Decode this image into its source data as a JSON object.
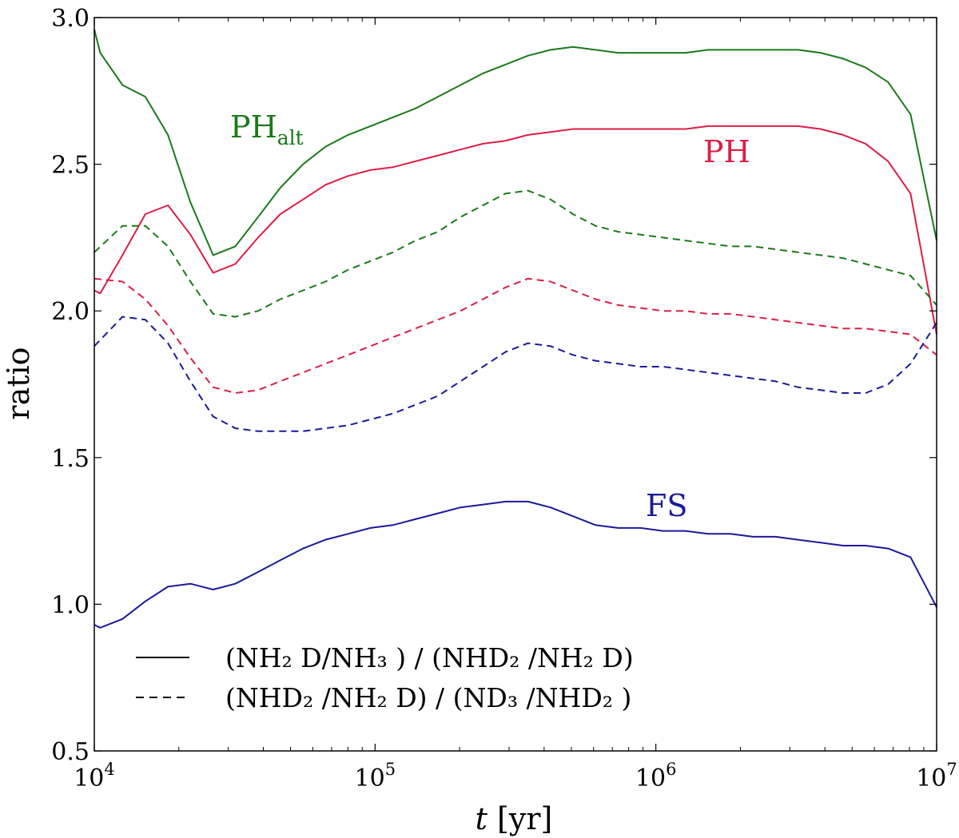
{
  "chart_data": {
    "type": "line",
    "title": "",
    "xlabel": {
      "italic": "t",
      "rest": " [yr]"
    },
    "ylabel": "ratio",
    "xscale": "log",
    "xlim": [
      10000,
      10000000
    ],
    "ylim": [
      0.5,
      3.0
    ],
    "grid": false,
    "x_ticks": [
      {
        "value": 10000,
        "base": "10",
        "exp": "4"
      },
      {
        "value": 100000,
        "base": "10",
        "exp": "5"
      },
      {
        "value": 1000000,
        "base": "10",
        "exp": "6"
      },
      {
        "value": 10000000,
        "base": "10",
        "exp": "7"
      }
    ],
    "y_ticks": [
      {
        "value": 0.5,
        "label": "0.5"
      },
      {
        "value": 1.0,
        "label": "1.0"
      },
      {
        "value": 1.5,
        "label": "1.5"
      },
      {
        "value": 2.0,
        "label": "2.0"
      },
      {
        "value": 2.5,
        "label": "2.5"
      },
      {
        "value": 3.0,
        "label": "3.0"
      }
    ],
    "colors": {
      "PH_alt": "#1a7a1a",
      "PH": "#dc1e46",
      "FS": "#1a1a9c",
      "axis": "#000000"
    },
    "series": [
      {
        "name": "PH_alt-solid",
        "model": "PH_alt",
        "style": "solid",
        "color": "#1a7a1a",
        "x": [
          10000,
          10500,
          12600,
          15200,
          18300,
          22000,
          26500,
          31800,
          38300,
          46000,
          55400,
          66600,
          80100,
          96300,
          115800,
          139300,
          167500,
          201500,
          242300,
          291400,
          350500,
          421600,
          507000,
          609800,
          733400,
          882000,
          1060800,
          1275900,
          1534500,
          1845500,
          2219600,
          2669500,
          3210600,
          3861300,
          4644000,
          5585200,
          6717200,
          8078600,
          10000000
        ],
        "values": [
          2.96,
          2.88,
          2.77,
          2.73,
          2.6,
          2.37,
          2.19,
          2.22,
          2.32,
          2.42,
          2.5,
          2.56,
          2.6,
          2.63,
          2.66,
          2.69,
          2.73,
          2.77,
          2.81,
          2.84,
          2.87,
          2.89,
          2.9,
          2.89,
          2.88,
          2.88,
          2.88,
          2.88,
          2.89,
          2.89,
          2.89,
          2.89,
          2.89,
          2.88,
          2.86,
          2.83,
          2.78,
          2.67,
          2.24
        ]
      },
      {
        "name": "PH-solid",
        "model": "PH",
        "style": "solid",
        "color": "#dc1e46",
        "x": [
          10000,
          10500,
          12600,
          15200,
          18300,
          22000,
          26500,
          31800,
          38300,
          46000,
          55400,
          66600,
          80100,
          96300,
          115800,
          139300,
          167500,
          201500,
          242300,
          291400,
          350500,
          421600,
          507000,
          609800,
          733400,
          882000,
          1060800,
          1275900,
          1534500,
          1845500,
          2219600,
          2669500,
          3210600,
          3861300,
          4644000,
          5585200,
          6717200,
          8078600,
          10000000
        ],
        "values": [
          2.07,
          2.06,
          2.19,
          2.33,
          2.36,
          2.26,
          2.13,
          2.16,
          2.25,
          2.33,
          2.38,
          2.43,
          2.46,
          2.48,
          2.49,
          2.51,
          2.53,
          2.55,
          2.57,
          2.58,
          2.6,
          2.61,
          2.62,
          2.62,
          2.62,
          2.62,
          2.62,
          2.62,
          2.63,
          2.63,
          2.63,
          2.63,
          2.63,
          2.62,
          2.6,
          2.57,
          2.51,
          2.4,
          1.92
        ]
      },
      {
        "name": "FS-solid",
        "model": "FS",
        "style": "solid",
        "color": "#1a1a9c",
        "x": [
          10000,
          10500,
          12600,
          15200,
          18300,
          22000,
          26500,
          31800,
          38300,
          46000,
          55400,
          66600,
          80100,
          96300,
          115800,
          139300,
          167500,
          201500,
          242300,
          291400,
          350500,
          421600,
          507000,
          609800,
          733400,
          882000,
          1060800,
          1275900,
          1534500,
          1845500,
          2219600,
          2669500,
          3210600,
          3861300,
          4644000,
          5585200,
          6717200,
          8078600,
          10000000
        ],
        "values": [
          0.93,
          0.92,
          0.95,
          1.01,
          1.06,
          1.07,
          1.05,
          1.07,
          1.11,
          1.15,
          1.19,
          1.22,
          1.24,
          1.26,
          1.27,
          1.29,
          1.31,
          1.33,
          1.34,
          1.35,
          1.35,
          1.33,
          1.3,
          1.27,
          1.26,
          1.26,
          1.25,
          1.25,
          1.24,
          1.24,
          1.23,
          1.23,
          1.22,
          1.21,
          1.2,
          1.2,
          1.19,
          1.16,
          0.99
        ]
      },
      {
        "name": "PH_alt-dashed",
        "model": "PH_alt",
        "style": "dashed",
        "color": "#1a7a1a",
        "x": [
          10000,
          12600,
          15200,
          18300,
          22000,
          26500,
          31800,
          38300,
          46000,
          55400,
          66600,
          80100,
          96300,
          115800,
          139300,
          167500,
          201500,
          242300,
          291400,
          350500,
          421600,
          507000,
          609800,
          733400,
          882000,
          1060800,
          1275900,
          1534500,
          1845500,
          2219600,
          2669500,
          3210600,
          3861300,
          4644000,
          5585200,
          6717200,
          8078600,
          10000000
        ],
        "values": [
          2.2,
          2.29,
          2.29,
          2.22,
          2.1,
          1.99,
          1.98,
          2.0,
          2.04,
          2.07,
          2.1,
          2.14,
          2.17,
          2.2,
          2.24,
          2.27,
          2.32,
          2.36,
          2.4,
          2.41,
          2.38,
          2.33,
          2.29,
          2.27,
          2.26,
          2.25,
          2.24,
          2.23,
          2.22,
          2.22,
          2.21,
          2.2,
          2.19,
          2.18,
          2.16,
          2.14,
          2.12,
          2.02
        ]
      },
      {
        "name": "PH-dashed",
        "model": "PH",
        "style": "dashed",
        "color": "#dc1e46",
        "x": [
          10000,
          12600,
          15200,
          18300,
          22000,
          26500,
          31800,
          38300,
          46000,
          55400,
          66600,
          80100,
          96300,
          115800,
          139300,
          167500,
          201500,
          242300,
          291400,
          350500,
          421600,
          507000,
          609800,
          733400,
          882000,
          1060800,
          1275900,
          1534500,
          1845500,
          2219600,
          2669500,
          3210600,
          3861300,
          4644000,
          5585200,
          6717200,
          8078600,
          10000000
        ],
        "values": [
          2.11,
          2.1,
          2.04,
          1.95,
          1.84,
          1.74,
          1.72,
          1.73,
          1.76,
          1.79,
          1.82,
          1.85,
          1.88,
          1.91,
          1.94,
          1.97,
          2.0,
          2.04,
          2.08,
          2.11,
          2.1,
          2.07,
          2.04,
          2.02,
          2.01,
          2.0,
          2.0,
          1.99,
          1.99,
          1.98,
          1.97,
          1.96,
          1.95,
          1.94,
          1.94,
          1.93,
          1.92,
          1.85
        ]
      },
      {
        "name": "FS-dashed",
        "model": "FS",
        "style": "dashed",
        "color": "#1a1a9c",
        "x": [
          10000,
          12600,
          15200,
          18300,
          22000,
          26500,
          31800,
          38300,
          46000,
          55400,
          66600,
          80100,
          96300,
          115800,
          139300,
          167500,
          201500,
          242300,
          291400,
          350500,
          421600,
          507000,
          609800,
          733400,
          882000,
          1060800,
          1275900,
          1534500,
          1845500,
          2219600,
          2669500,
          3210600,
          3861300,
          4644000,
          5585200,
          6717200,
          8078600,
          10000000
        ],
        "values": [
          1.88,
          1.98,
          1.97,
          1.89,
          1.76,
          1.64,
          1.6,
          1.59,
          1.59,
          1.59,
          1.6,
          1.61,
          1.63,
          1.65,
          1.68,
          1.71,
          1.76,
          1.81,
          1.86,
          1.89,
          1.88,
          1.85,
          1.83,
          1.82,
          1.81,
          1.81,
          1.8,
          1.79,
          1.78,
          1.77,
          1.76,
          1.74,
          1.73,
          1.72,
          1.72,
          1.75,
          1.82,
          1.96
        ]
      }
    ],
    "annotations": [
      {
        "name": "label-ph-alt",
        "main": "PH",
        "sub": "alt",
        "color": "#1a7a1a"
      },
      {
        "name": "label-ph",
        "main": "PH",
        "sub": "",
        "color": "#dc1e46"
      },
      {
        "name": "label-fs",
        "main": "FS",
        "sub": "",
        "color": "#1a1a9c"
      }
    ],
    "legend": {
      "position": "lower-left",
      "entries": [
        {
          "style": "solid",
          "label": "(NH₂ D/NH₃ )  /  (NHD₂ /NH₂ D)"
        },
        {
          "style": "dashed",
          "label": "(NHD₂ /NH₂ D)  /  (ND₃ /NHD₂ )"
        }
      ]
    }
  }
}
